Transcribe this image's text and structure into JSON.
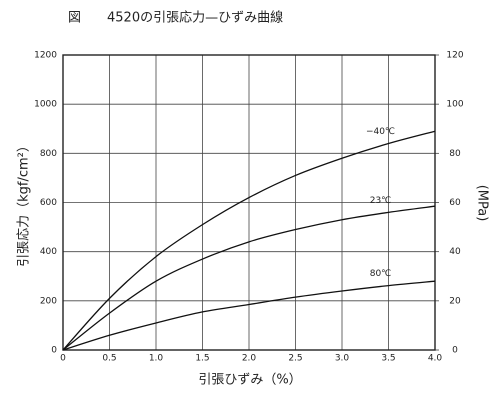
{
  "chart_data": {
    "type": "line",
    "title": "図　　4520の引張応力—ひずみ曲線",
    "x_label": "引張ひずみ（%）",
    "y_label": "引張応力（kgf/cm²）",
    "y2_label": "(MPa)",
    "x": [
      0,
      0.5,
      1.0,
      1.5,
      2.0,
      2.5,
      3.0,
      3.5,
      4.0
    ],
    "series": [
      {
        "name": "−40℃",
        "color": "#111",
        "values": [
          0,
          210,
          380,
          510,
          620,
          710,
          780,
          840,
          890
        ]
      },
      {
        "name": "23℃",
        "color": "#111",
        "values": [
          0,
          150,
          280,
          370,
          440,
          490,
          530,
          560,
          585
        ]
      },
      {
        "name": "80℃",
        "color": "#111",
        "values": [
          0,
          60,
          110,
          155,
          185,
          215,
          240,
          262,
          280
        ]
      }
    ],
    "xlim": [
      0,
      4.0
    ],
    "ylim": [
      0,
      1200
    ],
    "y2lim": [
      0,
      120
    ],
    "xticks": [
      0,
      0.5,
      {
        "value": 1,
        "label": "1.0"
      },
      1.5,
      {
        "value": 2,
        "label": "2.0"
      },
      2.5,
      {
        "value": 3,
        "label": "3.0"
      },
      3.5,
      {
        "value": 4,
        "label": "4.0"
      }
    ],
    "yticks": [
      0,
      200,
      400,
      600,
      800,
      1000,
      1200
    ],
    "y2ticks": [
      0,
      20,
      40,
      60,
      80,
      100,
      120
    ],
    "grid": true
  }
}
